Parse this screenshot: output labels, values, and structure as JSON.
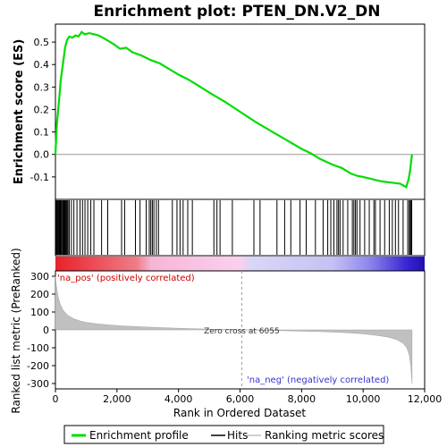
{
  "chart_data": {
    "type": "line",
    "title": "Enrichment plot: PTEN_DN.V2_DN",
    "xlabel": "Rank in Ordered Dataset",
    "ylabel_top": "Enrichment score (ES)",
    "ylabel_bottom": "Ranked list metric (PreRanked)",
    "x_range": [
      0,
      12000
    ],
    "x_ticks": [
      0,
      2000,
      4000,
      6000,
      8000,
      10000,
      12000
    ],
    "x_tick_labels": [
      "0",
      "2,000",
      "4,000",
      "6,000",
      "8,000",
      "10,000",
      "12,000"
    ],
    "es_range": [
      -0.2,
      0.58
    ],
    "es_ticks": [
      -0.1,
      0.0,
      0.1,
      0.2,
      0.3,
      0.4,
      0.5
    ],
    "es_tick_labels": [
      "-0.1",
      "0.0",
      "0.1",
      "0.2",
      "0.3",
      "0.4",
      "0.5"
    ],
    "metric_range": [
      -330,
      330
    ],
    "metric_ticks": [
      -300,
      -200,
      -100,
      0,
      100,
      200,
      300
    ],
    "metric_tick_labels": [
      "-300",
      "-200",
      "-100",
      "0",
      "100",
      "200",
      "300"
    ],
    "total_genes": 11600,
    "zero_cross": 6055,
    "zero_cross_label": "Zero cross at 6055",
    "pos_label": "'na_pos' (positively correlated)",
    "neg_label": "'na_neg' (negatively correlated)",
    "es_profile": [
      [
        0,
        0.0
      ],
      [
        20,
        0.06
      ],
      [
        50,
        0.14
      ],
      [
        90,
        0.2
      ],
      [
        130,
        0.26
      ],
      [
        170,
        0.33
      ],
      [
        220,
        0.38
      ],
      [
        270,
        0.43
      ],
      [
        320,
        0.48
      ],
      [
        380,
        0.51
      ],
      [
        450,
        0.525
      ],
      [
        550,
        0.52
      ],
      [
        650,
        0.53
      ],
      [
        750,
        0.525
      ],
      [
        850,
        0.545
      ],
      [
        950,
        0.535
      ],
      [
        1100,
        0.54
      ],
      [
        1250,
        0.535
      ],
      [
        1400,
        0.53
      ],
      [
        1600,
        0.515
      ],
      [
        1900,
        0.49
      ],
      [
        2100,
        0.47
      ],
      [
        2300,
        0.475
      ],
      [
        2500,
        0.455
      ],
      [
        2800,
        0.44
      ],
      [
        3100,
        0.42
      ],
      [
        3400,
        0.405
      ],
      [
        3700,
        0.38
      ],
      [
        4000,
        0.355
      ],
      [
        4300,
        0.335
      ],
      [
        4600,
        0.31
      ],
      [
        5000,
        0.275
      ],
      [
        5500,
        0.235
      ],
      [
        6000,
        0.19
      ],
      [
        6500,
        0.145
      ],
      [
        7000,
        0.105
      ],
      [
        7500,
        0.065
      ],
      [
        8000,
        0.025
      ],
      [
        8300,
        0.005
      ],
      [
        8600,
        -0.02
      ],
      [
        9000,
        -0.045
      ],
      [
        9300,
        -0.06
      ],
      [
        9600,
        -0.085
      ],
      [
        9800,
        -0.095
      ],
      [
        10000,
        -0.1
      ],
      [
        10300,
        -0.11
      ],
      [
        10600,
        -0.12
      ],
      [
        10900,
        -0.125
      ],
      [
        11200,
        -0.13
      ],
      [
        11400,
        -0.145
      ],
      [
        11480,
        -0.11
      ],
      [
        11530,
        -0.07
      ],
      [
        11570,
        -0.02
      ],
      [
        11590,
        0.0
      ]
    ],
    "hits": [
      20,
      45,
      70,
      95,
      120,
      140,
      160,
      185,
      210,
      240,
      265,
      290,
      320,
      350,
      380,
      410,
      450,
      520,
      600,
      700,
      800,
      880,
      960,
      1050,
      1150,
      1250,
      1500,
      1700,
      2150,
      2250,
      2600,
      2750,
      2950,
      3050,
      3100,
      3150,
      3200,
      3280,
      3350,
      3800,
      3950,
      4050,
      4150,
      4300,
      4450,
      5150,
      5250,
      5350,
      5750,
      6450,
      6650,
      7200,
      7450,
      7650,
      7950,
      8150,
      8450,
      8700,
      8850,
      8950,
      9050,
      9150,
      9200,
      9250,
      9350,
      9500,
      9650,
      9700,
      9750,
      9800,
      9900,
      10050,
      10200,
      10350,
      10400,
      10550,
      10700,
      10850,
      10950,
      11050,
      11150,
      11300,
      11450,
      11500,
      11530,
      11560,
      11580
    ],
    "metric_profile": [
      [
        0,
        300
      ],
      [
        30,
        250
      ],
      [
        80,
        190
      ],
      [
        150,
        145
      ],
      [
        250,
        110
      ],
      [
        400,
        82
      ],
      [
        600,
        62
      ],
      [
        800,
        50
      ],
      [
        1000,
        42
      ],
      [
        1300,
        35
      ],
      [
        1700,
        28
      ],
      [
        2200,
        22
      ],
      [
        2800,
        17
      ],
      [
        3500,
        12
      ],
      [
        4200,
        8
      ],
      [
        5000,
        4
      ],
      [
        5600,
        2
      ],
      [
        6055,
        0
      ],
      [
        6600,
        -2
      ],
      [
        7200,
        -4
      ],
      [
        7800,
        -6
      ],
      [
        8500,
        -9
      ],
      [
        9000,
        -12
      ],
      [
        9500,
        -16
      ],
      [
        10000,
        -22
      ],
      [
        10400,
        -30
      ],
      [
        10800,
        -40
      ],
      [
        11100,
        -55
      ],
      [
        11300,
        -75
      ],
      [
        11420,
        -100
      ],
      [
        11500,
        -140
      ],
      [
        11550,
        -200
      ],
      [
        11590,
        -300
      ]
    ],
    "legend": [
      {
        "label": "Enrichment profile",
        "color": "#00dd00"
      },
      {
        "label": "Hits",
        "color": "#000000"
      },
      {
        "label": "Ranking metric scores",
        "color": "#c0c0c0"
      }
    ],
    "colors": {
      "profile": "#00dd00",
      "metric_fill": "#c0c0c0",
      "pos_label": "#cc0000",
      "neg_label": "#3333cc"
    }
  }
}
